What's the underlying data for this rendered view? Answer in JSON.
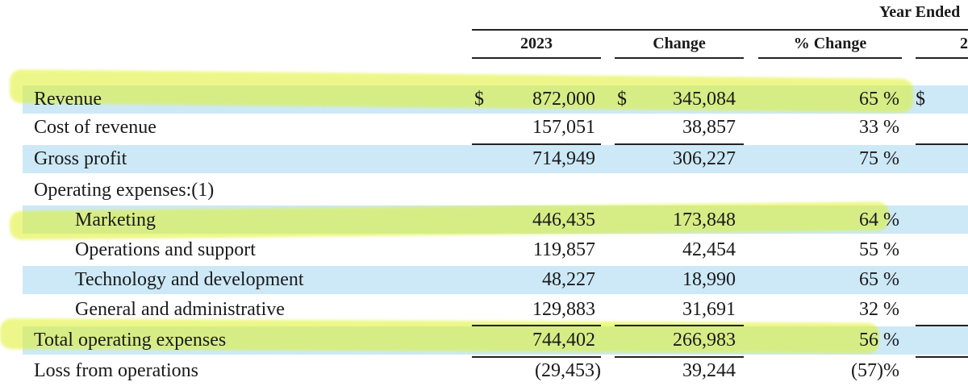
{
  "header": {
    "group": "Year Ended",
    "columns": [
      "2023",
      "Change",
      "% Change",
      "2"
    ]
  },
  "currency": "$",
  "rows": [
    {
      "label": "Revenue",
      "v2023": "872,000",
      "change": "345,084",
      "pct": "65 %"
    },
    {
      "label": "Cost of revenue",
      "v2023": "157,051",
      "change": "38,857",
      "pct": "33 %"
    },
    {
      "label": "Gross profit",
      "v2023": "714,949",
      "change": "306,227",
      "pct": "75 %"
    },
    {
      "label": "Operating expenses:(1)",
      "v2023": "",
      "change": "",
      "pct": ""
    },
    {
      "label": "Marketing",
      "v2023": "446,435",
      "change": "173,848",
      "pct": "64 %"
    },
    {
      "label": "Operations and support",
      "v2023": "119,857",
      "change": "42,454",
      "pct": "55 %"
    },
    {
      "label": "Technology and development",
      "v2023": "48,227",
      "change": "18,990",
      "pct": "65 %"
    },
    {
      "label": "General and administrative",
      "v2023": "129,883",
      "change": "31,691",
      "pct": "32 %"
    },
    {
      "label": "Total operating expenses",
      "v2023": "744,402",
      "change": "266,983",
      "pct": "56 %"
    },
    {
      "label": "Loss from operations",
      "v2023": "(29,453)",
      "change": "39,244",
      "pct": "(57)%"
    }
  ],
  "colors": {
    "band": "#cde9f7",
    "highlight": "#dff028"
  }
}
